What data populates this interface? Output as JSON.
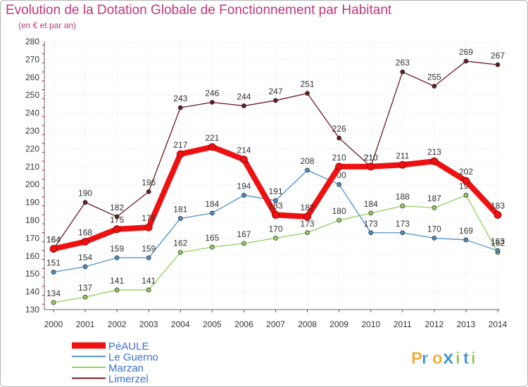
{
  "title": "Evolution de la Dotation Globale de Fonctionnement par Habitant",
  "subtitle": "(en € et par an)",
  "brand": {
    "letters": [
      "P",
      "r",
      "o",
      "x",
      "i",
      "t",
      "i"
    ],
    "colors": [
      "#f7a21b",
      "#2f8fd6",
      "#f7a21b",
      "#2f8fd6",
      "#8cc63f",
      "#2f8fd6",
      "#8cc63f"
    ]
  },
  "chart_data": {
    "type": "line",
    "title": "Evolution de la Dotation Globale de Fonctionnement par Habitant",
    "ylabel": "(en € et par an)",
    "xlabel": "",
    "ylim": [
      130,
      280
    ],
    "y_ticks": [
      130,
      140,
      150,
      160,
      170,
      180,
      190,
      200,
      210,
      220,
      230,
      240,
      250,
      260,
      270,
      280
    ],
    "grid": true,
    "legend_position": "bottom-left",
    "x": [
      "2000",
      "2001",
      "2002",
      "2003",
      "2004",
      "2005",
      "2006",
      "2007",
      "2008",
      "2009",
      "2010",
      "2011",
      "2012",
      "2013",
      "2014"
    ],
    "series": [
      {
        "name": "Limerzel",
        "color": "#6b1a22",
        "values": [
          164,
          190,
          182,
          196,
          243,
          246,
          244,
          247,
          251,
          226,
          210,
          263,
          255,
          269,
          267
        ]
      },
      {
        "name": "Marzan",
        "color": "#92d05a",
        "values": [
          134,
          137,
          141,
          141,
          162,
          165,
          167,
          170,
          173,
          180,
          184,
          188,
          187,
          194,
          162
        ]
      },
      {
        "name": "Le Guerno",
        "color": "#4a90c8",
        "values": [
          151,
          154,
          159,
          159,
          181,
          184,
          194,
          191,
          208,
          200,
          173,
          173,
          170,
          169,
          163
        ]
      },
      {
        "name": "PéAULE",
        "color": "#ee1111",
        "values": [
          164,
          168,
          175,
          176,
          217,
          221,
          214,
          183,
          182,
          210,
          210,
          211,
          213,
          202,
          183
        ]
      }
    ],
    "legend_order": [
      "PéAULE",
      "Le Guerno",
      "Marzan",
      "Limerzel"
    ]
  }
}
